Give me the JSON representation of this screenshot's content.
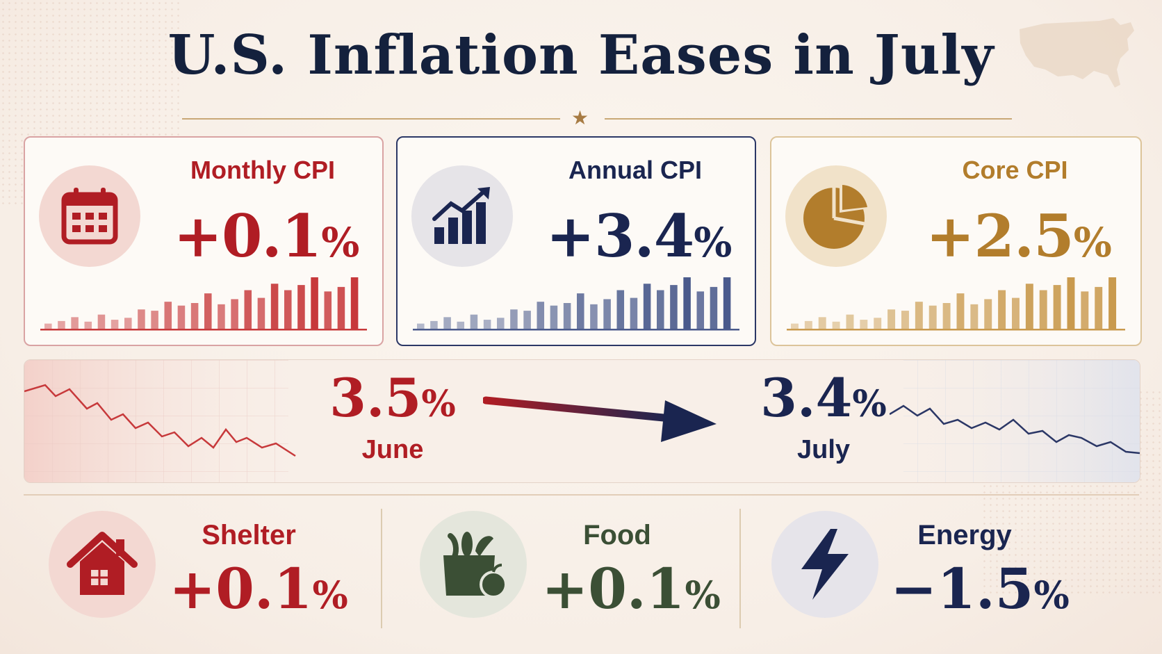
{
  "title": "U.S. Inflation Eases in July",
  "colors": {
    "red": "#b01d24",
    "navy": "#1a2550",
    "gold": "#b27d2c",
    "green": "#3b4f35"
  },
  "cards": [
    {
      "label": "Monthly CPI",
      "value": "+0.1",
      "unit": "%",
      "icon": "calendar-icon",
      "color": "#b01d24"
    },
    {
      "label": "Annual CPI",
      "value": "+3.4",
      "unit": "%",
      "icon": "chart-up-icon",
      "color": "#1a2550"
    },
    {
      "label": "Core CPI",
      "value": "+2.5",
      "unit": "%",
      "icon": "pie-chart-icon",
      "color": "#b27d2c"
    }
  ],
  "comparison": {
    "from": {
      "value": "3.5",
      "unit": "%",
      "label": "June"
    },
    "to": {
      "value": "3.4",
      "unit": "%",
      "label": "July"
    }
  },
  "categories": [
    {
      "label": "Shelter",
      "value": "+0.1",
      "unit": "%",
      "icon": "house-icon",
      "color": "#b01d24"
    },
    {
      "label": "Food",
      "value": "+0.1",
      "unit": "%",
      "icon": "grocery-bag-icon",
      "color": "#3b4f35"
    },
    {
      "label": "Energy",
      "value": "−1.5",
      "unit": "%",
      "icon": "lightning-icon",
      "color": "#1a2550"
    }
  ]
}
